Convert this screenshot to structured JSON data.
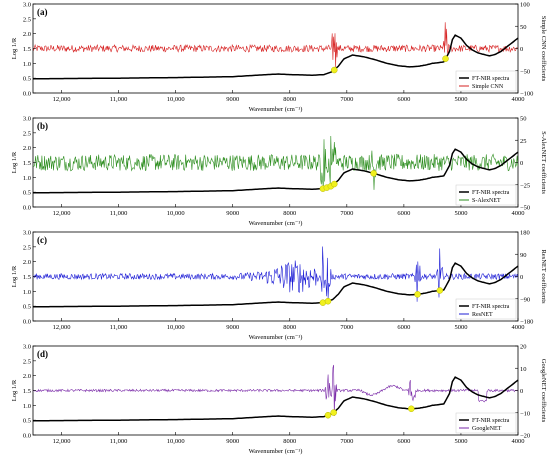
{
  "chart_data": [
    {
      "type": "line",
      "panel_label": "(a)",
      "xlabel": "Wavenumber (cm⁻¹)",
      "ylabel": "Log 1/R",
      "y2label": "Simple CNN coefficients",
      "xlim": [
        12500,
        4000
      ],
      "x_ticks": [
        "12,000",
        "11,000",
        "10,000",
        "9000",
        "8000",
        "7000",
        "6000",
        "5000",
        "4000"
      ],
      "ylim": [
        0,
        3.0
      ],
      "y_ticks": [
        "0.0",
        "0.5",
        "1.0",
        "1.5",
        "2.0",
        "2.5",
        "3.0"
      ],
      "y2lim": [
        -100,
        100
      ],
      "y2_ticks": [
        "−100",
        "−50",
        "0",
        "50",
        "100"
      ],
      "legend_position": "bottom-right",
      "series": [
        {
          "name": "FT-NIR spectra",
          "color": "#000000"
        },
        {
          "name": "Simple CNN",
          "color": "#d62020"
        }
      ],
      "highlights_wavenumber": [
        7220,
        5270
      ]
    },
    {
      "type": "line",
      "panel_label": "(b)",
      "xlabel": "Wavenumber (cm⁻¹)",
      "ylabel": "Log 1/R",
      "y2label": "S-AlexNET coefficients",
      "xlim": [
        12500,
        4000
      ],
      "x_ticks": [
        "12,000",
        "11,000",
        "10,000",
        "9000",
        "8000",
        "7000",
        "6000",
        "5000",
        "4000"
      ],
      "ylim": [
        0,
        3.0
      ],
      "y_ticks": [
        "0.0",
        "0.5",
        "1.0",
        "1.5",
        "2.0",
        "2.5",
        "3.0"
      ],
      "y2lim": [
        -50,
        50
      ],
      "y2_ticks": [
        "−50",
        "−25",
        "0",
        "25",
        "50"
      ],
      "legend_position": "bottom-right",
      "series": [
        {
          "name": "FT-NIR spectra",
          "color": "#000000"
        },
        {
          "name": "S-AlexNET",
          "color": "#2a8c1c"
        }
      ],
      "highlights_wavenumber": [
        7420,
        7350,
        7280,
        7220,
        6530
      ]
    },
    {
      "type": "line",
      "panel_label": "(c)",
      "xlabel": "Wavenumber (cm⁻¹)",
      "ylabel": "Log 1/R",
      "y2label": "ResNET coefficients",
      "xlim": [
        12500,
        4000
      ],
      "x_ticks": [
        "12,000",
        "11,000",
        "10,000",
        "9000",
        "8000",
        "7000",
        "6000",
        "5000",
        "4000"
      ],
      "ylim": [
        0,
        3.0
      ],
      "y_ticks": [
        "0.0",
        "0.5",
        "1.0",
        "1.5",
        "2.0",
        "2.5",
        "3.0"
      ],
      "y2lim": [
        -180,
        180
      ],
      "y2_ticks": [
        "−180",
        "−90",
        "0",
        "90",
        "180"
      ],
      "legend_position": "bottom-right",
      "series": [
        {
          "name": "FT-NIR spectra",
          "color": "#000000"
        },
        {
          "name": "ResNET",
          "color": "#1f1fd6"
        }
      ],
      "highlights_wavenumber": [
        7420,
        7330,
        5760,
        5370
      ]
    },
    {
      "type": "line",
      "panel_label": "(d)",
      "xlabel": "Wavenumber (cm⁻¹)",
      "ylabel": "Log 1/R",
      "y2label": "GoogleNET coefficients",
      "xlim": [
        12500,
        4000
      ],
      "x_ticks": [
        "12,000",
        "11,000",
        "10,000",
        "9000",
        "8000",
        "7000",
        "6000",
        "5000",
        "4000"
      ],
      "ylim": [
        0,
        3.0
      ],
      "y_ticks": [
        "0.0",
        "0.5",
        "1.0",
        "1.5",
        "2.0",
        "2.5",
        "3.0"
      ],
      "y2lim": [
        -20,
        20
      ],
      "y2_ticks": [
        "−20",
        "−10",
        "0",
        "10",
        "20"
      ],
      "legend_position": "bottom-right",
      "series": [
        {
          "name": "FT-NIR spectra",
          "color": "#000000"
        },
        {
          "name": "GoogleNET",
          "color": "#7a2aa8"
        }
      ],
      "highlights_wavenumber": [
        7330,
        7230,
        5870
      ]
    }
  ],
  "spectrum_profile": {
    "wavenumber": [
      12500,
      11000,
      10000,
      9000,
      8400,
      8200,
      8000,
      7600,
      7400,
      7250,
      7150,
      7050,
      6900,
      6700,
      6500,
      6300,
      6100,
      5900,
      5750,
      5600,
      5500,
      5400,
      5300,
      5200,
      5150,
      5100,
      5000,
      4900,
      4800,
      4700,
      4600,
      4500,
      4400,
      4300,
      4200,
      4100,
      4000
    ],
    "log_1_over_r": [
      0.48,
      0.5,
      0.52,
      0.55,
      0.62,
      0.64,
      0.62,
      0.6,
      0.62,
      0.72,
      0.9,
      1.15,
      1.28,
      1.22,
      1.12,
      1.0,
      0.92,
      0.88,
      0.9,
      0.95,
      1.0,
      1.02,
      1.05,
      1.4,
      1.8,
      1.95,
      1.85,
      1.6,
      1.45,
      1.35,
      1.3,
      1.25,
      1.3,
      1.4,
      1.55,
      1.7,
      1.85
    ]
  },
  "highlight_color": "#f0f01e"
}
